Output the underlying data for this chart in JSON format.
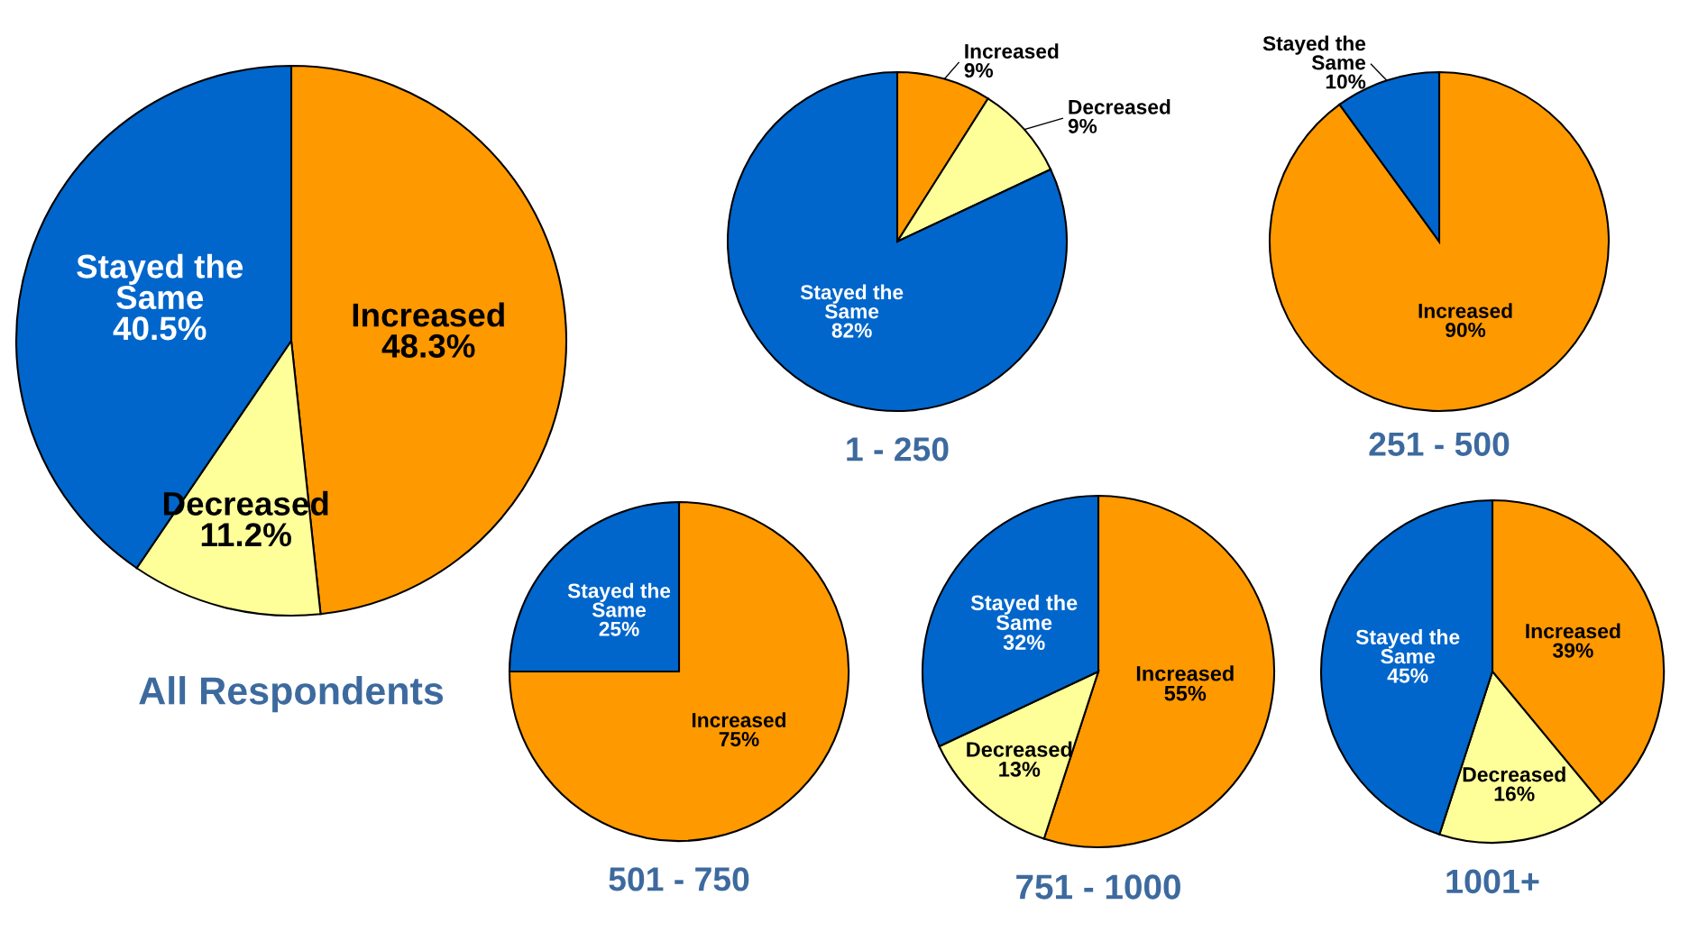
{
  "chart_data": [
    {
      "type": "pie",
      "title": "All Respondents",
      "categories": [
        "Increased",
        "Decreased",
        "Stayed the Same"
      ],
      "values": [
        48.3,
        11.2,
        40.5
      ],
      "value_labels": [
        "48.3%",
        "11.2%",
        "40.5%"
      ],
      "colors": [
        "#ff9900",
        "#ffff99",
        "#0066cc"
      ]
    },
    {
      "type": "pie",
      "title": "1 - 250",
      "categories": [
        "Increased",
        "Decreased",
        "Stayed the Same"
      ],
      "values": [
        9,
        9,
        82
      ],
      "value_labels": [
        "9%",
        "9%",
        "82%"
      ],
      "colors": [
        "#ff9900",
        "#ffff99",
        "#0066cc"
      ]
    },
    {
      "type": "pie",
      "title": "251 - 500",
      "categories": [
        "Increased",
        "Stayed the Same"
      ],
      "values": [
        90,
        10
      ],
      "value_labels": [
        "90%",
        "10%"
      ],
      "colors": [
        "#ff9900",
        "#0066cc"
      ]
    },
    {
      "type": "pie",
      "title": "501 - 750",
      "categories": [
        "Increased",
        "Stayed the Same"
      ],
      "values": [
        75,
        25
      ],
      "value_labels": [
        "75%",
        "25%"
      ],
      "colors": [
        "#ff9900",
        "#0066cc"
      ]
    },
    {
      "type": "pie",
      "title": "751 - 1000",
      "categories": [
        "Increased",
        "Decreased",
        "Stayed the Same"
      ],
      "values": [
        55,
        13,
        32
      ],
      "value_labels": [
        "55%",
        "13%",
        "32%"
      ],
      "colors": [
        "#ff9900",
        "#ffff99",
        "#0066cc"
      ]
    },
    {
      "type": "pie",
      "title": "1001+",
      "categories": [
        "Increased",
        "Decreased",
        "Stayed the Same"
      ],
      "values": [
        39,
        16,
        45
      ],
      "value_labels": [
        "39%",
        "16%",
        "45%"
      ],
      "colors": [
        "#ff9900",
        "#ffff99",
        "#0066cc"
      ]
    }
  ]
}
